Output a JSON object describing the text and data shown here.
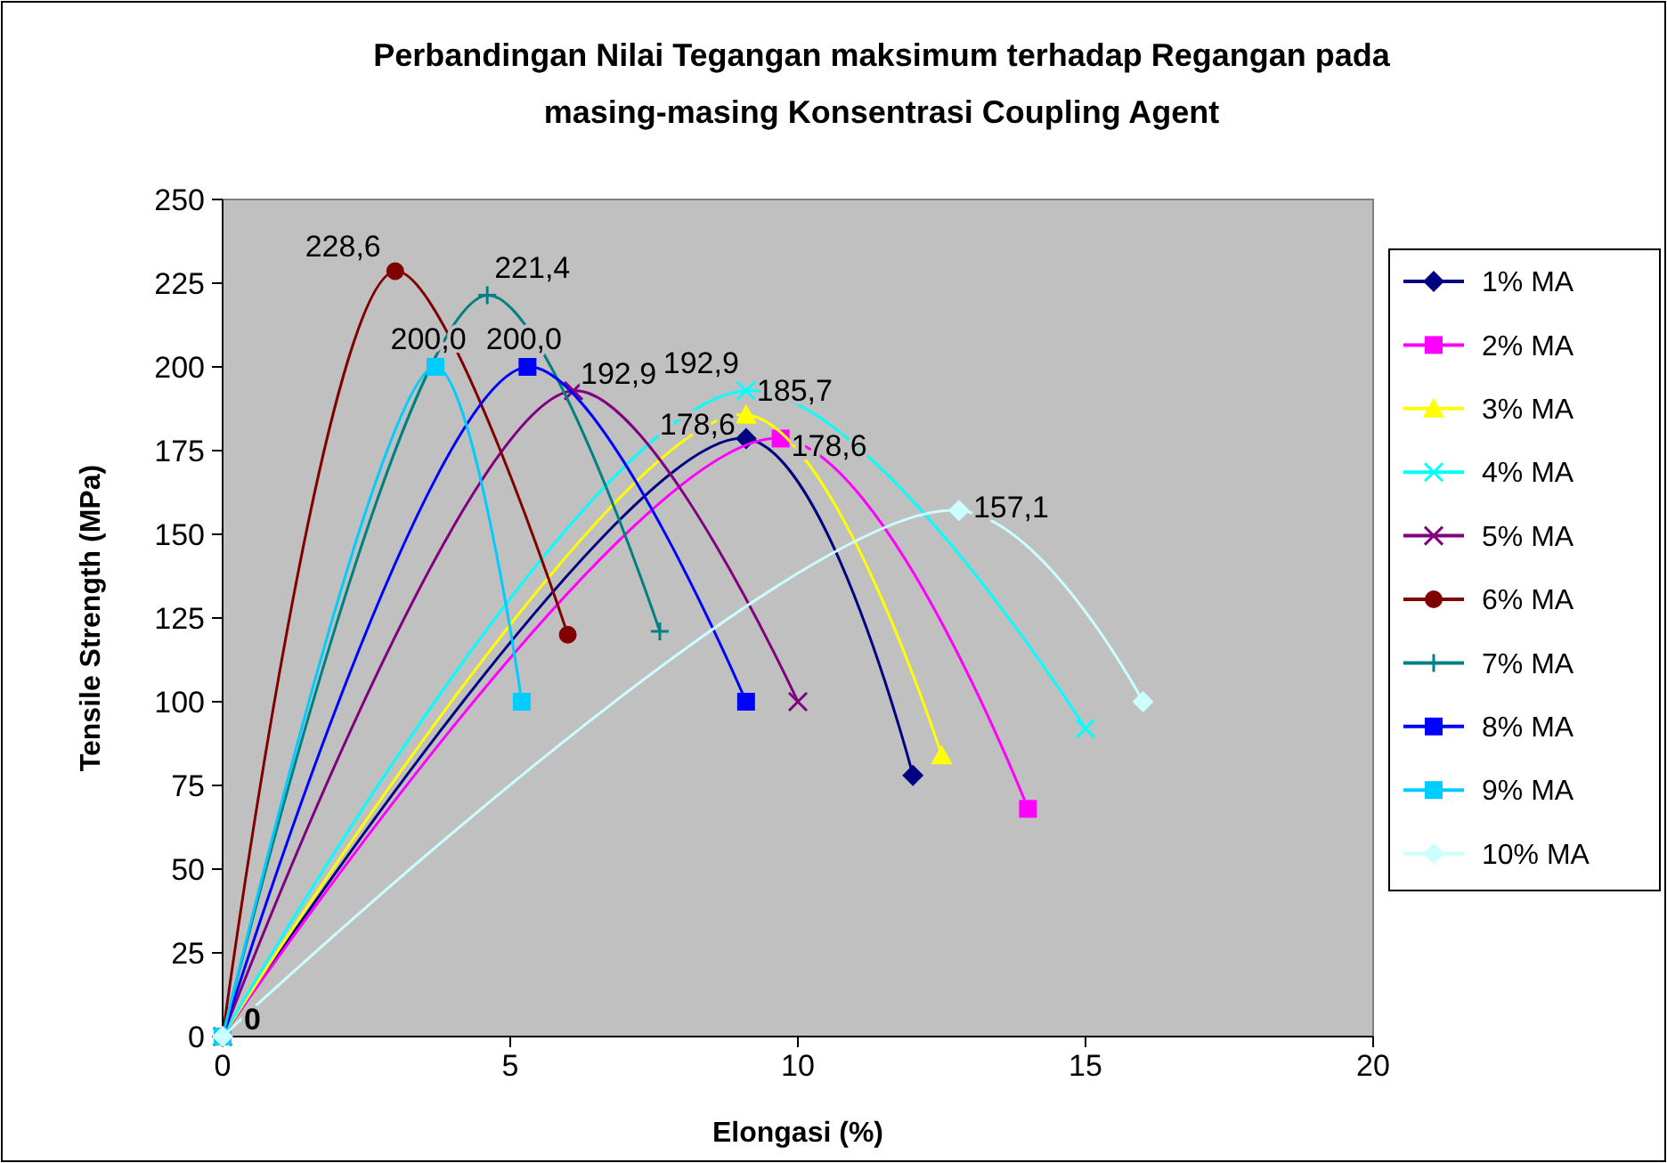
{
  "chart_data": {
    "type": "line",
    "title": "Perbandingan Nilai Tegangan maksimum terhadap Regangan pada masing-masing Konsentrasi Coupling Agent",
    "xlabel": "Elongasi (%)",
    "ylabel": "Tensile Strength (MPa)",
    "xlim": [
      0,
      20
    ],
    "xticks": [
      0,
      5,
      10,
      15,
      20
    ],
    "ylim": [
      0,
      250
    ],
    "yticks": [
      0,
      25,
      50,
      75,
      100,
      125,
      150,
      175,
      200,
      225,
      250
    ],
    "grid": false,
    "legend": "right",
    "series": [
      {
        "name": "1% MA",
        "color": "#000080",
        "marker": "diamond",
        "x": [
          0,
          9.1,
          12
        ],
        "values": [
          0,
          178.6,
          78
        ],
        "value_labels": [
          "0",
          "178,6",
          null
        ]
      },
      {
        "name": "2% MA",
        "color": "#ff00ff",
        "marker": "square",
        "x": [
          0,
          9.7,
          14
        ],
        "values": [
          0,
          178.6,
          68
        ],
        "value_labels": [
          null,
          "178,6",
          null
        ]
      },
      {
        "name": "3% MA",
        "color": "#ffff00",
        "marker": "triangle",
        "x": [
          0,
          9.1,
          12.5
        ],
        "values": [
          0,
          185.7,
          84
        ],
        "value_labels": [
          null,
          "185,7",
          null
        ]
      },
      {
        "name": "4% MA",
        "color": "#00ffff",
        "marker": "cross",
        "x": [
          0,
          9.1,
          15
        ],
        "values": [
          0,
          192.9,
          92
        ],
        "value_labels": [
          null,
          "192,9",
          null
        ]
      },
      {
        "name": "5% MA",
        "color": "#800080",
        "marker": "cross",
        "x": [
          0,
          6.1,
          10
        ],
        "values": [
          0,
          192.9,
          100
        ],
        "value_labels": [
          null,
          "192,9",
          null
        ]
      },
      {
        "name": "6% MA",
        "color": "#800000",
        "marker": "circle",
        "x": [
          0,
          3,
          6
        ],
        "values": [
          0,
          228.6,
          120
        ],
        "value_labels": [
          null,
          "228,6",
          null
        ]
      },
      {
        "name": "7% MA",
        "color": "#008080",
        "marker": "plus",
        "x": [
          0,
          4.6,
          7.6
        ],
        "values": [
          0,
          221.4,
          121
        ],
        "value_labels": [
          null,
          "221,4",
          null
        ]
      },
      {
        "name": "8% MA",
        "color": "#0000ff",
        "marker": "square",
        "x": [
          0,
          5.3,
          9.1
        ],
        "values": [
          0,
          200,
          100
        ],
        "value_labels": [
          null,
          "200,0",
          null
        ]
      },
      {
        "name": "9% MA",
        "color": "#00ccff",
        "marker": "square",
        "x": [
          0,
          3.7,
          5.2
        ],
        "values": [
          0,
          200,
          100
        ],
        "value_labels": [
          null,
          "200,0",
          null
        ]
      },
      {
        "name": "10% MA",
        "color": "#ccffff",
        "marker": "diamond",
        "x": [
          0,
          12.8,
          16
        ],
        "values": [
          0,
          157.1,
          100
        ],
        "value_labels": [
          null,
          "157,1",
          null
        ]
      }
    ]
  }
}
